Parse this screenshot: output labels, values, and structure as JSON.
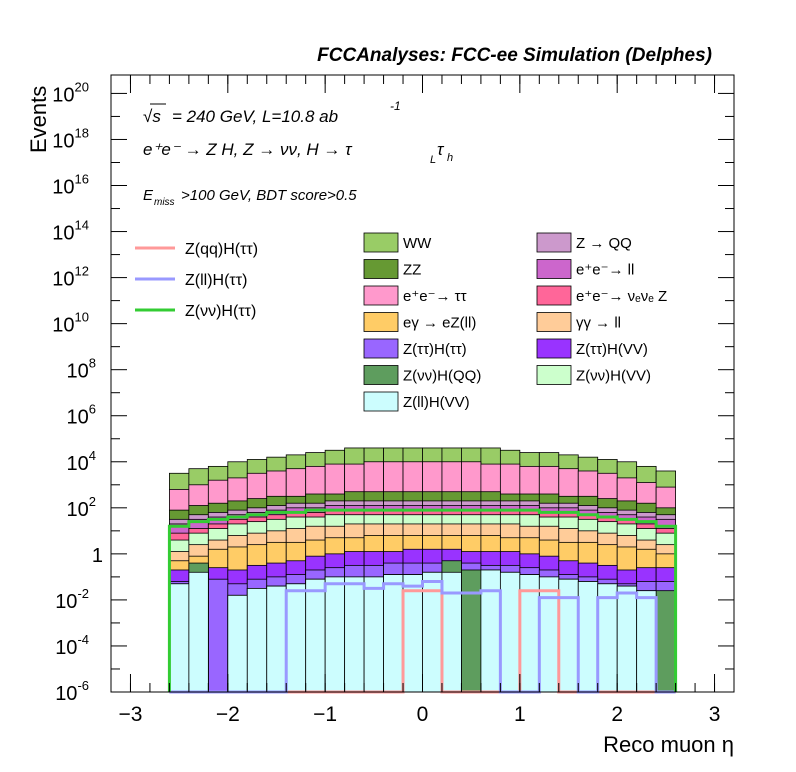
{
  "chart_data": {
    "type": "stacked-histogram",
    "title": "FCCAnalyses: FCC-ee Simulation (Delphes)",
    "xlabel": "Reco muon η",
    "ylabel": "Events",
    "xlim": [
      -3.2,
      3.2
    ],
    "ylim_log10": [
      -6,
      20.8
    ],
    "y_scale": "log",
    "x_ticks": [
      "−3",
      "−2",
      "−1",
      "0",
      "1",
      "2",
      "3"
    ],
    "y_ticks": [
      {
        "base": "10",
        "exp": "20",
        "v": 20
      },
      {
        "base": "10",
        "exp": "18",
        "v": 18
      },
      {
        "base": "10",
        "exp": "16",
        "v": 16
      },
      {
        "base": "10",
        "exp": "14",
        "v": 14
      },
      {
        "base": "10",
        "exp": "12",
        "v": 12
      },
      {
        "base": "10",
        "exp": "10",
        "v": 10
      },
      {
        "base": "10",
        "exp": "8",
        "v": 8
      },
      {
        "base": "10",
        "exp": "6",
        "v": 6
      },
      {
        "base": "10",
        "exp": "4",
        "v": 4
      },
      {
        "base": "10",
        "exp": "2",
        "v": 2
      },
      {
        "base": "1",
        "exp": "",
        "v": 0
      },
      {
        "base": "10",
        "exp": "-2",
        "v": -2
      },
      {
        "base": "10",
        "exp": "-4",
        "v": -4
      },
      {
        "base": "10",
        "exp": "-6",
        "v": -6
      }
    ],
    "annotations": {
      "line1_sqrt": "√s",
      "line1_rest": "= 240 GeV, L=10.8 ab",
      "line1_exp": "-1",
      "line2": "e⁺e⁻ → Z H, Z → νν, H → τ",
      "line2_sub1": "L",
      "line2_tau": "τ",
      "line2_sub2": "h",
      "line3_E": "E",
      "line3_sub": "miss",
      "line3_rest": ">100 GeV, BDT score>0.5"
    },
    "bins_edges": [
      -2.6,
      -2.4,
      -2.2,
      -2.0,
      -1.8,
      -1.6,
      -1.4,
      -1.2,
      -1.0,
      -0.8,
      -0.6,
      -0.4,
      -0.2,
      0.0,
      0.2,
      0.4,
      0.6,
      0.8,
      1.0,
      1.2,
      1.4,
      1.6,
      1.8,
      2.0,
      2.2,
      2.4,
      2.6
    ],
    "stack_cumulative_log10": [
      {
        "name": "Z(ll)H(VV)",
        "color": "#ccfdfe",
        "values": [
          -1.3,
          -0.8,
          -6,
          -1.8,
          -1.5,
          -1.4,
          -1.3,
          -1.1,
          -1.0,
          -1.0,
          -1.0,
          -0.9,
          -0.9,
          -0.8,
          -0.8,
          -6,
          -0.7,
          -0.8,
          -0.9,
          -1.0,
          -1.1,
          -1.2,
          -1.3,
          -1.4,
          -1.6,
          -6
        ]
      },
      {
        "name": "Z(νν)H(QQ)",
        "color": "#5e9d5e",
        "values": [
          -1.3,
          -0.4,
          -6,
          -1.8,
          -1.5,
          -1.4,
          -1.3,
          -1.1,
          -1.0,
          -1.0,
          -1.0,
          -0.9,
          -0.9,
          -0.8,
          -0.3,
          -0.7,
          -0.7,
          -0.8,
          -0.9,
          -1.0,
          -1.1,
          -1.2,
          -1.3,
          -1.4,
          -1.6,
          -1.6
        ]
      },
      {
        "name": "Z(ττ)H(ττ)",
        "color": "#9966ff",
        "values": [
          -1.2,
          -1.0,
          -1.1,
          -1.3,
          -1.1,
          -1.0,
          -0.9,
          -0.7,
          -0.6,
          -0.5,
          -0.5,
          -0.4,
          -0.4,
          -0.4,
          -0.4,
          -0.4,
          -0.5,
          -0.5,
          -0.6,
          -0.7,
          -0.9,
          -1.0,
          -1.1,
          -1.3,
          -1.2,
          -1.2
        ]
      },
      {
        "name": "Z(ττ)H(VV)",
        "color": "#9933ff",
        "values": [
          -0.7,
          -0.5,
          -0.6,
          -0.7,
          -0.5,
          -0.4,
          -0.3,
          -0.1,
          0.0,
          0.1,
          0.1,
          0.1,
          0.2,
          0.2,
          0.2,
          0.1,
          0.1,
          0.1,
          0.0,
          -0.1,
          -0.3,
          -0.4,
          -0.5,
          -0.7,
          -0.6,
          -0.6
        ]
      },
      {
        "name": "eγ → eZ(ll)",
        "color": "#ffcc66",
        "values": [
          -0.3,
          -0.1,
          0.2,
          0.3,
          0.4,
          0.5,
          0.5,
          0.6,
          0.7,
          0.7,
          0.8,
          0.8,
          0.8,
          0.8,
          0.8,
          0.8,
          0.8,
          0.7,
          0.7,
          0.6,
          0.5,
          0.5,
          0.4,
          0.3,
          0.2,
          0.0
        ]
      },
      {
        "name": "γγ → ll",
        "color": "#ffcc99",
        "values": [
          0.1,
          0.4,
          0.6,
          0.8,
          0.9,
          1.0,
          1.1,
          1.2,
          1.2,
          1.3,
          1.3,
          1.3,
          1.3,
          1.3,
          1.3,
          1.3,
          1.3,
          1.3,
          1.2,
          1.2,
          1.1,
          1.0,
          0.9,
          0.8,
          0.6,
          0.4
        ]
      },
      {
        "name": "Z(νν)H(VV)",
        "color": "#ccffcc",
        "values": [
          0.6,
          0.9,
          1.1,
          1.3,
          1.4,
          1.5,
          1.6,
          1.6,
          1.7,
          1.7,
          1.7,
          1.7,
          1.7,
          1.7,
          1.7,
          1.7,
          1.7,
          1.7,
          1.7,
          1.6,
          1.6,
          1.5,
          1.4,
          1.3,
          1.1,
          0.9
        ]
      },
      {
        "name": "e⁺e⁻→ νₑνₑ Z",
        "color": "#ff6699",
        "values": [
          0.9,
          1.1,
          1.3,
          1.5,
          1.6,
          1.7,
          1.8,
          1.8,
          1.9,
          1.9,
          1.9,
          1.9,
          1.9,
          1.9,
          1.9,
          1.9,
          1.9,
          1.9,
          1.9,
          1.8,
          1.8,
          1.7,
          1.6,
          1.5,
          1.3,
          1.1
        ]
      },
      {
        "name": "e⁺e⁻→ ll",
        "color": "#cc66cc",
        "values": [
          1.3,
          1.5,
          1.6,
          1.7,
          1.8,
          1.9,
          2.0,
          2.0,
          2.1,
          2.1,
          2.1,
          2.1,
          2.1,
          2.1,
          2.1,
          2.1,
          2.1,
          2.1,
          2.1,
          2.0,
          2.0,
          1.9,
          1.8,
          1.7,
          1.6,
          1.5
        ]
      },
      {
        "name": "Z → QQ",
        "color": "#cc99cc",
        "values": [
          1.5,
          1.7,
          1.8,
          1.9,
          2.0,
          2.1,
          2.2,
          2.2,
          2.3,
          2.3,
          2.3,
          2.3,
          2.3,
          2.3,
          2.3,
          2.3,
          2.3,
          2.3,
          2.3,
          2.2,
          2.2,
          2.1,
          2.0,
          1.9,
          1.8,
          1.7
        ]
      },
      {
        "name": "ZZ",
        "color": "#669933",
        "values": [
          1.9,
          2.1,
          2.2,
          2.3,
          2.4,
          2.5,
          2.5,
          2.6,
          2.6,
          2.7,
          2.7,
          2.7,
          2.7,
          2.7,
          2.7,
          2.7,
          2.7,
          2.6,
          2.6,
          2.6,
          2.5,
          2.5,
          2.4,
          2.3,
          2.2,
          2.0
        ]
      },
      {
        "name": "e⁺e⁻→ ττ",
        "color": "#ff99cc",
        "values": [
          2.8,
          3.0,
          3.2,
          3.3,
          3.5,
          3.6,
          3.7,
          3.8,
          3.9,
          3.9,
          4.0,
          4.0,
          4.0,
          4.0,
          4.0,
          4.0,
          3.9,
          3.9,
          3.8,
          3.8,
          3.7,
          3.6,
          3.5,
          3.3,
          3.1,
          2.9
        ]
      },
      {
        "name": "WW",
        "color": "#99cc66",
        "values": [
          3.5,
          3.7,
          3.8,
          4.0,
          4.1,
          4.2,
          4.3,
          4.4,
          4.5,
          4.6,
          4.6,
          4.6,
          4.6,
          4.6,
          4.6,
          4.6,
          4.6,
          4.5,
          4.4,
          4.4,
          4.3,
          4.2,
          4.1,
          4.0,
          3.8,
          3.6
        ]
      }
    ],
    "overlay_log10": [
      {
        "name": "Z(qq)H(ττ)",
        "color": "#ff9999",
        "values": [
          -6,
          -6,
          -6,
          -6,
          -6,
          -6,
          -6,
          -6,
          -6,
          -6,
          -6,
          -6,
          -1.6,
          -1.6,
          -6,
          -6,
          -6,
          -6,
          -1.6,
          -1.6,
          -6,
          -6,
          -6,
          -6,
          -6,
          -6
        ]
      },
      {
        "name": "Z(ll)H(ττ)",
        "color": "#9999ff",
        "values": [
          -6,
          -6,
          -6,
          -6,
          -6,
          -6,
          -1.6,
          -1.6,
          -1.3,
          -1.3,
          -1.5,
          -1.3,
          -1.4,
          -1.2,
          -1.7,
          -1.7,
          -1.6,
          -6,
          -6,
          -1.9,
          -1.9,
          -6,
          -1.9,
          -1.7,
          -1.9,
          -6
        ]
      },
      {
        "name": "Z(νν)H(ττ)",
        "color": "#33cc33",
        "values": [
          1.2,
          1.4,
          1.5,
          1.6,
          1.7,
          1.8,
          1.8,
          1.9,
          1.9,
          1.9,
          1.9,
          1.9,
          1.9,
          1.9,
          1.9,
          1.9,
          1.9,
          1.9,
          1.9,
          1.8,
          1.8,
          1.7,
          1.6,
          1.5,
          1.4,
          1.2
        ]
      }
    ],
    "legend_lines": [
      "Z(qq)H(ττ)",
      "Z(ll)H(ττ)",
      "Z(νν)H(ττ)"
    ],
    "legend_col1": [
      "WW",
      "ZZ",
      "e⁺e⁻→ ττ",
      "eγ → eZ(ll)",
      "Z(ττ)H(ττ)",
      "Z(νν)H(QQ)",
      "Z(ll)H(VV)"
    ],
    "legend_col2": [
      "Z → QQ",
      "e⁺e⁻→ ll",
      "e⁺e⁻→ νₑνₑ Z",
      "γγ → ll",
      "Z(ττ)H(VV)",
      "Z(νν)H(VV)"
    ]
  }
}
